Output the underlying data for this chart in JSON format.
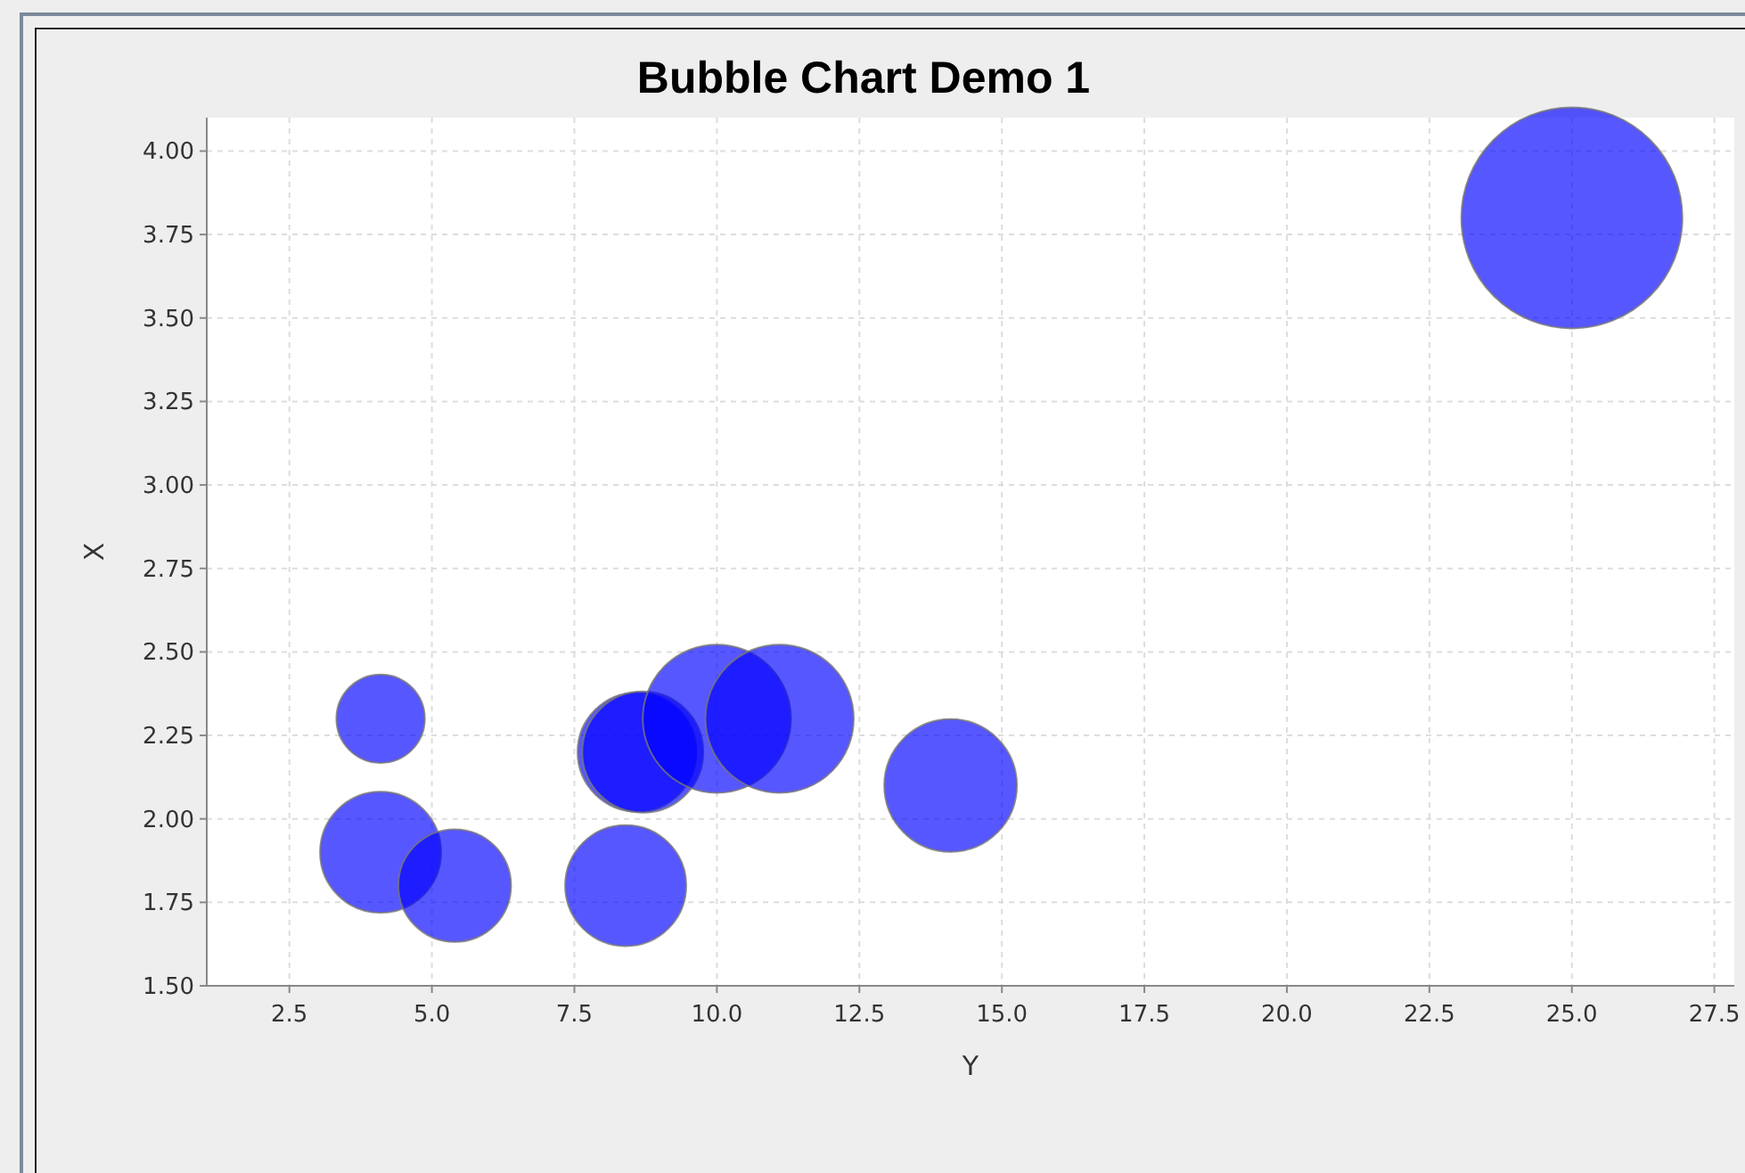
{
  "chart_data": {
    "type": "bubble",
    "title": "Bubble Chart Demo 1",
    "xlabel": "Y",
    "ylabel": "X",
    "x": [
      4.1,
      4.1,
      5.4,
      8.4,
      8.6,
      8.7,
      10.0,
      11.1,
      14.1,
      25.0
    ],
    "values": [
      2.3,
      1.9,
      1.8,
      1.8,
      2.2,
      2.2,
      2.3,
      2.3,
      2.1,
      3.8
    ],
    "sizes": [
      0.16,
      0.3,
      0.26,
      0.3,
      0.29,
      0.3,
      0.45,
      0.45,
      0.36,
      1
    ],
    "color": "#0000ff",
    "xlim": [
      1.05,
      27.85
    ],
    "xticks": [
      {
        "value": 2.5,
        "label": "2.5"
      },
      {
        "value": 5,
        "label": "5.0"
      },
      {
        "value": 7.5,
        "label": "7.5"
      },
      {
        "value": 10,
        "label": "10.0"
      },
      {
        "value": 12.5,
        "label": "12.5"
      },
      {
        "value": 15,
        "label": "15.0"
      },
      {
        "value": 17.5,
        "label": "17.5"
      },
      {
        "value": 20,
        "label": "20.0"
      },
      {
        "value": 22.5,
        "label": "22.5"
      },
      {
        "value": 25,
        "label": "25.0"
      },
      {
        "value": 27.5,
        "label": "27.5"
      }
    ],
    "ylim": [
      1.5,
      4.1
    ],
    "yticks": [
      {
        "value": 1.5,
        "label": "1.50"
      },
      {
        "value": 1.75,
        "label": "1.75"
      },
      {
        "value": 2,
        "label": "2.00"
      },
      {
        "value": 2.25,
        "label": "2.25"
      },
      {
        "value": 2.5,
        "label": "2.50"
      },
      {
        "value": 2.75,
        "label": "2.75"
      },
      {
        "value": 3,
        "label": "3.00"
      },
      {
        "value": 3.25,
        "label": "3.25"
      },
      {
        "value": 3.5,
        "label": "3.50"
      },
      {
        "value": 3.75,
        "label": "3.75"
      },
      {
        "value": 4,
        "label": "4.00"
      }
    ],
    "grid": true
  }
}
